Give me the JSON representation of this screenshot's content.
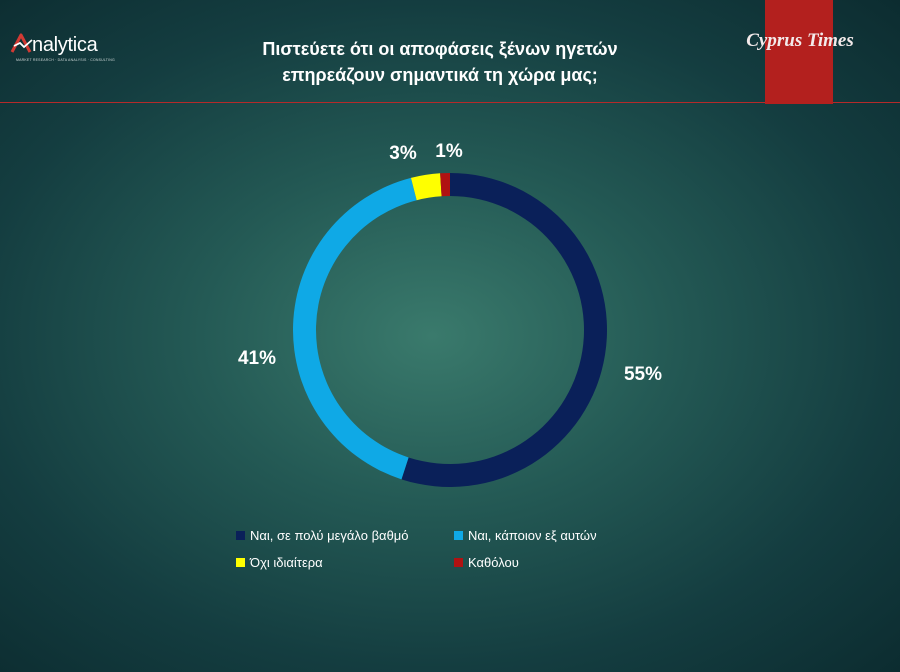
{
  "header": {
    "logo_text": "nalytica",
    "logo_tagline": "MARKET RESEARCH · DATA ANALYSIS · CONSULTING",
    "title_line1": "Πιστεύετε ότι οι αποφάσεις ξένων ηγετών",
    "title_line2": "επηρεάζουν σημαντικά τη χώρα μας;",
    "newspaper": "Cyprus Times"
  },
  "colors": {
    "accent_red": "#b3201e",
    "logo_red": "#d23a34"
  },
  "chart_data": {
    "type": "pie",
    "subtype": "donut",
    "title": "Πιστεύετε ότι οι αποφάσεις ξένων ηγετών επηρεάζουν σημαντικά τη χώρα μας;",
    "categories": [
      "Ναι, σε πολύ μεγάλο βαθμό",
      "Ναι, κάποιον εξ αυτών",
      "Όχι ιδιαίτερα",
      "Καθόλου"
    ],
    "values": [
      55,
      41,
      3,
      1
    ],
    "labels": [
      "55%",
      "41%",
      "3%",
      "1%"
    ],
    "colors": [
      "#0a2059",
      "#0fa9e6",
      "#ffff00",
      "#b01212"
    ],
    "legend_position": "bottom"
  }
}
